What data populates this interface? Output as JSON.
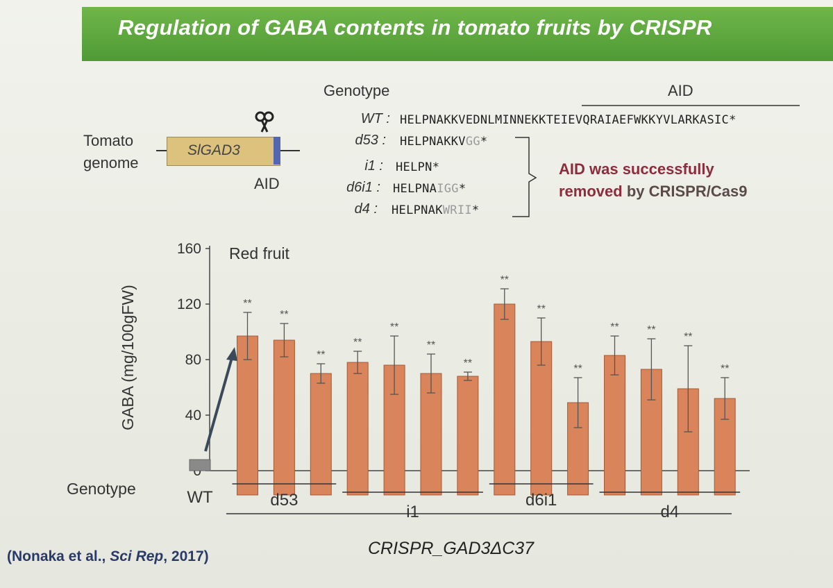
{
  "title": "Regulation of GABA contents in tomato fruits by CRISPR",
  "genotype_header": "Genotype",
  "aid_header": "AID",
  "gene": {
    "genome_label_1": "Tomato",
    "genome_label_2": "genome",
    "gene_name": "SlGAD3",
    "aid_label": "AID",
    "scissors_icon": "scissors-icon"
  },
  "sequences": [
    {
      "label": "WT :",
      "seq": "HELPNAKKVEDNLMINNEKKTEIEVQRAIAEFWKKYVLARKASIC",
      "tail": "",
      "stop": "*"
    },
    {
      "label": "d53 :",
      "seq": "HELPNAKKV",
      "tail": "GG",
      "stop": "*"
    },
    {
      "label": "i1 :",
      "seq": "HELPN",
      "tail": "",
      "stop": "*"
    },
    {
      "label": "d6i1 :",
      "seq": "HELPNA",
      "tail": "IGG",
      "stop": "*"
    },
    {
      "label": "d4 :",
      "seq": "HELPNAK",
      "tail": "WRII",
      "stop": "*"
    }
  ],
  "aid_note": {
    "line1": "AID was successfully",
    "line2_a": "removed",
    "line2_b": " by CRISPR/Cas9"
  },
  "citation": {
    "authors": "(Nonaka et al., ",
    "journal": "Sci Rep",
    "year": ", 2017)"
  },
  "chart_data": {
    "type": "bar",
    "title": "Red fruit",
    "ylabel": "GABA (mg/100gFW)",
    "xlabel": "Genotype",
    "ylim": [
      0,
      160
    ],
    "yticks": [
      0,
      40,
      80,
      120,
      160
    ],
    "bar_color": "#d9845a",
    "wt_color": "#8a8a8a",
    "bars": [
      {
        "group": "WT",
        "value": 8,
        "err": 0,
        "sig": ""
      },
      {
        "group": "d53",
        "value": 97,
        "err": 17,
        "sig": "**"
      },
      {
        "group": "d53",
        "value": 94,
        "err": 12,
        "sig": "**"
      },
      {
        "group": "d53",
        "value": 70,
        "err": 7,
        "sig": "**"
      },
      {
        "group": "i1",
        "value": 78,
        "err": 8,
        "sig": "**"
      },
      {
        "group": "i1",
        "value": 76,
        "err": 21,
        "sig": "**"
      },
      {
        "group": "i1",
        "value": 70,
        "err": 14,
        "sig": "**"
      },
      {
        "group": "i1",
        "value": 68,
        "err": 3,
        "sig": "**"
      },
      {
        "group": "d6i1",
        "value": 120,
        "err": 11,
        "sig": "**"
      },
      {
        "group": "d6i1",
        "value": 93,
        "err": 17,
        "sig": "**"
      },
      {
        "group": "d6i1",
        "value": 49,
        "err": 18,
        "sig": "**"
      },
      {
        "group": "d4",
        "value": 83,
        "err": 14,
        "sig": "**"
      },
      {
        "group": "d4",
        "value": 73,
        "err": 22,
        "sig": "**"
      },
      {
        "group": "d4",
        "value": 59,
        "err": 31,
        "sig": "**"
      },
      {
        "group": "d4",
        "value": 52,
        "err": 15,
        "sig": "**"
      }
    ],
    "group_labels": [
      "WT",
      "d53",
      "i1",
      "d6i1",
      "d4"
    ],
    "construct_label": "CRISPR_GAD3ΔC37"
  }
}
